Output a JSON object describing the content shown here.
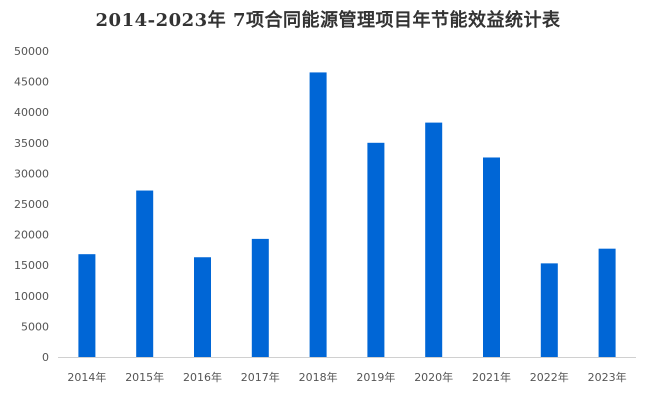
{
  "chart_data": {
    "type": "bar",
    "title": "2014-2023年 7项合同能源管理项目年节能效益统计表",
    "xlabel": "",
    "ylabel": "",
    "categories": [
      "2014年",
      "2015年",
      "2016年",
      "2017年",
      "2018年",
      "2019年",
      "2020年",
      "2021年",
      "2022年",
      "2023年"
    ],
    "values": [
      16800,
      27200,
      16300,
      19300,
      46500,
      35000,
      38300,
      32600,
      15300,
      17700
    ],
    "ylim": [
      0,
      50000
    ],
    "yticks": [
      0,
      5000,
      10000,
      15000,
      20000,
      25000,
      30000,
      35000,
      40000,
      45000,
      50000
    ],
    "grid": false,
    "legend": "none",
    "bar_color": "#0066d6"
  }
}
